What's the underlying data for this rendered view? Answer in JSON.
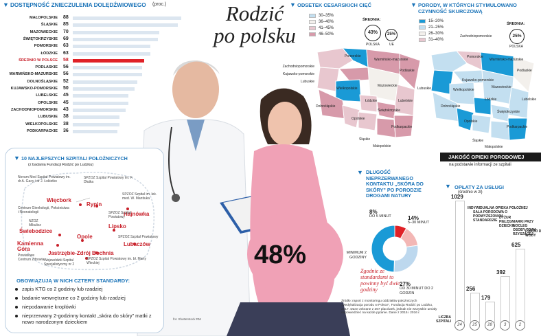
{
  "title": {
    "line1": "Rodzić",
    "line2": "po polsku"
  },
  "anesthesia": {
    "heading": "DOSTĘPNOŚĆ ZNIECZULENIA DOLĘDŹWIOWEGO",
    "unit": "(proc.)",
    "rows": [
      {
        "label": "MAŁOPOLSKIE",
        "value": "88"
      },
      {
        "label": "ŚLĄSKIE",
        "value": "85"
      },
      {
        "label": "MAZOWIECKIE",
        "value": "70"
      },
      {
        "label": "ŚWIĘTOKRZYSKIE",
        "value": "69"
      },
      {
        "label": "POMORSKIE",
        "value": "63"
      },
      {
        "label": "ŁÓDZKIE",
        "value": "63"
      },
      {
        "label": "ŚREDNIO W POLSCE",
        "value": "58"
      },
      {
        "label": "PODLASKIE",
        "value": "56"
      },
      {
        "label": "WARMIŃSKO-MAZURSKIE",
        "value": "56"
      },
      {
        "label": "DOLNOŚLĄSKIE",
        "value": "52"
      },
      {
        "label": "KUJAWSKO-POMORSKIE",
        "value": "50"
      },
      {
        "label": "LUBELSKIE",
        "value": "45"
      },
      {
        "label": "OPOLSKIE",
        "value": "45"
      },
      {
        "label": "ZACHODNIOPOMORSKIE",
        "value": "43"
      },
      {
        "label": "LUBUSKIE",
        "value": "38"
      },
      {
        "label": "WIELKOPOLSKIE",
        "value": "38"
      },
      {
        "label": "PODKARPACKIE",
        "value": "36"
      }
    ],
    "highlight_color": "#e02127",
    "bar_color": "#dce6f0"
  },
  "cesarean": {
    "heading": "ODSETEK CESARSKICH CIĘĆ",
    "legend": [
      {
        "label": "30–35%",
        "color": "#c3dff0"
      },
      {
        "label": "36–40%",
        "color": "#f3f0ec"
      },
      {
        "label": "41–45%",
        "color": "#e8c7cf"
      },
      {
        "label": "46–50%",
        "color": "#d79aaa"
      }
    ],
    "avg_label": "ŚREDNIA:",
    "poland_value": "43%",
    "poland_label": "POLSKA",
    "eu_value": "25%",
    "eu_label": "UE",
    "regions": [
      "Pomorskie",
      "Warmińsko-mazurskie",
      "Zachodniopomorskie",
      "Kujawsko-pomorskie",
      "Lubuskie",
      "Podlaskie",
      "Wielkopolskie",
      "Mazowieckie",
      "Łódzkie",
      "Lubelskie",
      "Dolnośląskie",
      "Świętokrzyskie",
      "Opolskie",
      "Podkarpackie",
      "Śląskie",
      "Małopolskie"
    ]
  },
  "induced": {
    "heading": "PORODY, W KTÓRYCH STYMULOWANO CZYNNOŚĆ SKURCZOWĄ",
    "legend": [
      {
        "label": "15–20%",
        "color": "#1a9ad6"
      },
      {
        "label": "21–25%",
        "color": "#c3dff0"
      },
      {
        "label": "26–30%",
        "color": "#f3f0ec"
      },
      {
        "label": "31–40%",
        "color": "#e8c7cf"
      }
    ],
    "avg_label": "ŚREDNIA:",
    "poland_value": "25%",
    "poland_label": "POLSKA",
    "regions": [
      "Zachodniopomorskie",
      "Pomorskie",
      "Warmińsko-mazurskie",
      "Podlaskie",
      "Lubuskie",
      "Kujawsko-pomorskie",
      "Wielkopolskie",
      "Mazowieckie",
      "Lubelskie",
      "Dolnośląskie",
      "Łódzkie",
      "Opolskie",
      "Świętokrzyskie",
      "Podkarpackie",
      "Śląskie",
      "Małopolskie"
    ]
  },
  "hospitals": {
    "heading": "10 NAJLEPSZYCH SZPITALI POŁOŻNICZYCH",
    "subheading": "(z badania Fundacji Rodzić po Ludzku)",
    "cities": [
      {
        "name": "Więcbork",
        "detail": "Novum Med Szpital Powiatowy im. dr A. Gacy i dr J. Łokietko"
      },
      {
        "name": "Rypin",
        "detail": "SPZOZ Szpital Powiatowy im. F. Dłutka"
      },
      {
        "name": "Hajnówka",
        "detail": "SPZOZ Szpital im. lek. med. W. Mantiuka"
      },
      {
        "name": "Świebodzice",
        "detail": "NZOZ Mikulicz"
      },
      {
        "name": "Kamienna Góra",
        "detail": "Powiatowe Centrum Zdrowia"
      },
      {
        "name": "Opole",
        "detail": "Centrum Ginekologii, Położnictwa i Neonatologii"
      },
      {
        "name": "Lipsko",
        "detail": "SPZOZ Szpital Powiatowy"
      },
      {
        "name": "Jastrzębie-Zdrój",
        "detail": "Wojewódzki Szpital Specjalistyczny nr 2"
      },
      {
        "name": "Bochnia",
        "detail": "SPZOZ Szpital Powiatowy im. bł. Marty Wieckiej"
      },
      {
        "name": "Lubaczów",
        "detail": "SPZOZ Szpital Powiatowy"
      }
    ]
  },
  "standards": {
    "heading": "OBOWIĄZUJĄ W NICH CZTERY STANDARDY:",
    "items": [
      "zapis KTG co 2 godziny lub rzadziej",
      "badanie wewnętrzne co 2 godziny lub rzadziej",
      "niepodawanie kroplówki",
      "nieprzerwany 2-godzinny kontakt „skóra do skóry” matki z nowo narodzonym dzieckiem"
    ]
  },
  "photo_credit": "fot. Shutterstock    RM",
  "quality": {
    "banner": "JAKOŚĆ OPIEKI PORODOWEJ",
    "sub": "na podstawie informacji ze szpitali"
  },
  "skin": {
    "heading": "DŁUGOŚĆ NIEPRZERWANEGO KONTAKTU „SKÓRA DO SKÓRY” PO PORODZIE DROGAMI NATURY",
    "big_value": "48%",
    "labels": [
      {
        "value": "8%",
        "text": "DO 5 MINUT"
      },
      {
        "value": "14%",
        "text": "5–30 MINUT"
      },
      {
        "value": "",
        "text": "MINIMUM 2 GODZINY"
      },
      {
        "value": "27%",
        "text": "OD 30 MINUT DO 2 GODZIN"
      }
    ],
    "note": "Zgodnie ze standardami to powinny być dwie godziny",
    "source": "Źródło: raport z monitoringu oddziałów położniczych „Medykalizacja porodu w Polsce”, Fundacja Rodzić po Ludzku, 2017. Dane zebrane z 367 placówek, jednak nie wszystkie umiały odpowiedzieć na każde pytanie. Dane z 2015 i 2016 r."
  },
  "fees": {
    "heading": "OPŁATY ZA USŁUGI",
    "sub": "(średnio w zł)",
    "items": [
      {
        "label": "INDYWIDUALNA OPIEKA POŁOŻNEJ",
        "value": 1029,
        "hospitals": "24"
      },
      {
        "label": "SALA PORODOWA O PODWYŻSZONYM STANDARDZIE",
        "value": 256,
        "hospitals": "25"
      },
      {
        "label": "DYŻUR PIELĘGNIARKI PRZY DZIECKU",
        "value": 179,
        "hospitals": "28"
      },
      {
        "label": "NOCLEG OSOBY TOWA- RZYSZĄCEJ",
        "value": 392,
        "hospitals": "3"
      },
      {
        "label": "PORÓD DO WODY",
        "value": 625,
        "hospitals": "2"
      }
    ],
    "count_label": "LICZBA SZPITALI"
  },
  "colors": {
    "accent_blue": "#1a73b8",
    "accent_red": "#e02127",
    "ink": "#222222"
  }
}
